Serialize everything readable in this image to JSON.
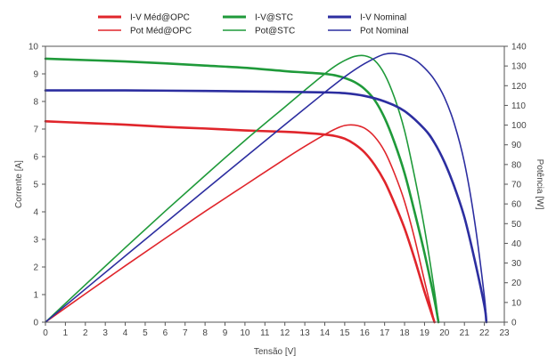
{
  "chart_data": {
    "type": "line",
    "xlabel": "Tensão [V]",
    "ylabel_left": "Corrente [A]",
    "ylabel_right": "Potência [W]",
    "xlim": [
      0,
      23
    ],
    "ylim_left": [
      0,
      10
    ],
    "ylim_right": [
      0,
      140
    ],
    "x_ticks": [
      0,
      1,
      2,
      3,
      4,
      5,
      6,
      7,
      8,
      9,
      10,
      11,
      12,
      13,
      14,
      15,
      16,
      17,
      18,
      19,
      20,
      21,
      22,
      23
    ],
    "y_left_ticks": [
      0,
      1,
      2,
      3,
      4,
      5,
      6,
      7,
      8,
      9,
      10
    ],
    "y_right_ticks": [
      0,
      10,
      20,
      30,
      40,
      50,
      60,
      70,
      80,
      90,
      100,
      110,
      120,
      130,
      140
    ],
    "grid": false,
    "legend_position": "top",
    "series": [
      {
        "name": "I-V Méd@OPC",
        "axis": "left",
        "color": "#e0252b",
        "style": "thick",
        "points": [
          [
            0,
            7.28
          ],
          [
            2,
            7.22
          ],
          [
            4,
            7.16
          ],
          [
            6,
            7.08
          ],
          [
            8,
            7.02
          ],
          [
            10,
            6.95
          ],
          [
            12,
            6.9
          ],
          [
            13,
            6.86
          ],
          [
            14,
            6.8
          ],
          [
            14.5,
            6.75
          ],
          [
            15,
            6.65
          ],
          [
            15.5,
            6.45
          ],
          [
            16,
            6.15
          ],
          [
            16.5,
            5.7
          ],
          [
            17,
            5.1
          ],
          [
            17.5,
            4.3
          ],
          [
            18,
            3.4
          ],
          [
            18.5,
            2.3
          ],
          [
            19,
            1.1
          ],
          [
            19.5,
            0
          ]
        ]
      },
      {
        "name": "Pot Méd@OPC",
        "axis": "right",
        "color": "#e0252b",
        "style": "thin",
        "points": [
          [
            0,
            0
          ],
          [
            2,
            14.4
          ],
          [
            4,
            28.6
          ],
          [
            6,
            42.5
          ],
          [
            8,
            56.2
          ],
          [
            10,
            69.5
          ],
          [
            12,
            82.8
          ],
          [
            13,
            89.2
          ],
          [
            14,
            95.2
          ],
          [
            14.5,
            97.9
          ],
          [
            15,
            99.8
          ],
          [
            15.5,
            100
          ],
          [
            16,
            98.4
          ],
          [
            16.5,
            94.1
          ],
          [
            17,
            86.7
          ],
          [
            17.5,
            75.3
          ],
          [
            18,
            61.2
          ],
          [
            18.5,
            42.6
          ],
          [
            19,
            20.9
          ],
          [
            19.5,
            0
          ]
        ]
      },
      {
        "name": "I-V@STC",
        "axis": "left",
        "color": "#1f9a3a",
        "style": "thick",
        "points": [
          [
            0,
            9.55
          ],
          [
            2,
            9.5
          ],
          [
            4,
            9.45
          ],
          [
            6,
            9.38
          ],
          [
            8,
            9.3
          ],
          [
            10,
            9.22
          ],
          [
            12,
            9.1
          ],
          [
            13,
            9.05
          ],
          [
            14,
            9.0
          ],
          [
            14.5,
            8.95
          ],
          [
            15,
            8.85
          ],
          [
            15.5,
            8.7
          ],
          [
            16,
            8.45
          ],
          [
            16.5,
            8.05
          ],
          [
            17,
            7.4
          ],
          [
            17.5,
            6.5
          ],
          [
            18,
            5.4
          ],
          [
            18.5,
            4.0
          ],
          [
            19,
            2.5
          ],
          [
            19.5,
            0.8
          ],
          [
            19.7,
            0
          ]
        ]
      },
      {
        "name": "Pot@STC",
        "axis": "right",
        "color": "#1f9a3a",
        "style": "thin",
        "points": [
          [
            0,
            0
          ],
          [
            2,
            19
          ],
          [
            4,
            37.8
          ],
          [
            6,
            56.3
          ],
          [
            8,
            74.4
          ],
          [
            10,
            92.2
          ],
          [
            12,
            109.2
          ],
          [
            13,
            117.7
          ],
          [
            14,
            126
          ],
          [
            14.5,
            129.8
          ],
          [
            15,
            132.8
          ],
          [
            15.5,
            134.9
          ],
          [
            16,
            135.2
          ],
          [
            16.5,
            132.8
          ],
          [
            17,
            125.8
          ],
          [
            17.5,
            113.8
          ],
          [
            18,
            97.2
          ],
          [
            18.5,
            74
          ],
          [
            19,
            47.5
          ],
          [
            19.5,
            15.6
          ],
          [
            19.7,
            0
          ]
        ]
      },
      {
        "name": "I-V Nominal",
        "axis": "left",
        "color": "#2c2ea0",
        "style": "thick",
        "points": [
          [
            0,
            8.4
          ],
          [
            4,
            8.4
          ],
          [
            8,
            8.38
          ],
          [
            12,
            8.35
          ],
          [
            14,
            8.33
          ],
          [
            15,
            8.3
          ],
          [
            16,
            8.2
          ],
          [
            17,
            8.0
          ],
          [
            18,
            7.65
          ],
          [
            19,
            7.0
          ],
          [
            19.5,
            6.5
          ],
          [
            20,
            5.8
          ],
          [
            20.5,
            4.9
          ],
          [
            21,
            3.8
          ],
          [
            21.5,
            2.3
          ],
          [
            22,
            0.6
          ],
          [
            22.1,
            0
          ]
        ]
      },
      {
        "name": "Pot Nominal",
        "axis": "right",
        "color": "#2c2ea0",
        "style": "thin",
        "points": [
          [
            0,
            0
          ],
          [
            4,
            33.6
          ],
          [
            8,
            67
          ],
          [
            12,
            100.2
          ],
          [
            14,
            116.6
          ],
          [
            15,
            124.5
          ],
          [
            16,
            131.2
          ],
          [
            17,
            136
          ],
          [
            17.8,
            135.9
          ],
          [
            18.5,
            133.2
          ],
          [
            19,
            129
          ],
          [
            19.5,
            123
          ],
          [
            20,
            114
          ],
          [
            20.5,
            100.5
          ],
          [
            21,
            81
          ],
          [
            21.5,
            52
          ],
          [
            22,
            13
          ],
          [
            22.1,
            0
          ]
        ]
      }
    ]
  }
}
